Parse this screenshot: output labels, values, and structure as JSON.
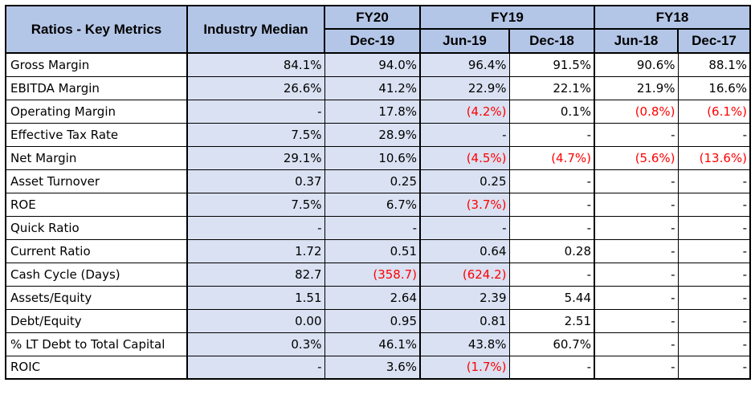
{
  "header": {
    "ratios_label": "Ratios - Key Metrics",
    "industry_median_label": "Industry Median",
    "fiscal_years": [
      "FY20",
      "FY19",
      "FY18"
    ],
    "periods": [
      "Dec-19",
      "Jun-19",
      "Dec-18",
      "Jun-18",
      "Dec-17"
    ]
  },
  "colors": {
    "header_fill": "#b4c6e7",
    "shaded_fill": "#d9e1f2",
    "negative_text": "#ff0000"
  },
  "rows": [
    {
      "label": "Gross Margin",
      "median": "84.1%",
      "values": [
        "94.0%",
        "96.4%",
        "91.5%",
        "90.6%",
        "88.1%"
      ],
      "negative": [
        false,
        false,
        false,
        false,
        false
      ]
    },
    {
      "label": "EBITDA Margin",
      "median": "26.6%",
      "values": [
        "41.2%",
        "22.9%",
        "22.1%",
        "21.9%",
        "16.6%"
      ],
      "negative": [
        false,
        false,
        false,
        false,
        false
      ]
    },
    {
      "label": "Operating Margin",
      "median": "-",
      "values": [
        "17.8%",
        "(4.2%)",
        "0.1%",
        "(0.8%)",
        "(6.1%)"
      ],
      "negative": [
        false,
        true,
        false,
        true,
        true
      ]
    },
    {
      "label": "Effective Tax Rate",
      "median": "7.5%",
      "values": [
        "28.9%",
        "-",
        "-",
        "-",
        "-"
      ],
      "negative": [
        false,
        false,
        false,
        false,
        false
      ]
    },
    {
      "label": "Net Margin",
      "median": "29.1%",
      "values": [
        "10.6%",
        "(4.5%)",
        "(4.7%)",
        "(5.6%)",
        "(13.6%)"
      ],
      "negative": [
        false,
        true,
        true,
        true,
        true
      ]
    },
    {
      "label": "Asset Turnover",
      "median": "0.37",
      "values": [
        "0.25",
        "0.25",
        "-",
        "-",
        "-"
      ],
      "negative": [
        false,
        false,
        false,
        false,
        false
      ]
    },
    {
      "label": "ROE",
      "median": "7.5%",
      "values": [
        "6.7%",
        "(3.7%)",
        "-",
        "-",
        "-"
      ],
      "negative": [
        false,
        true,
        false,
        false,
        false
      ]
    },
    {
      "label": "Quick Ratio",
      "median": "-",
      "values": [
        "-",
        "-",
        "-",
        "-",
        "-"
      ],
      "negative": [
        false,
        false,
        false,
        false,
        false
      ]
    },
    {
      "label": "Current Ratio",
      "median": "1.72",
      "values": [
        "0.51",
        "0.64",
        "0.28",
        "-",
        "-"
      ],
      "negative": [
        false,
        false,
        false,
        false,
        false
      ]
    },
    {
      "label": "Cash Cycle (Days)",
      "median": "82.7",
      "values": [
        "(358.7)",
        "(624.2)",
        "-",
        "-",
        "-"
      ],
      "negative": [
        true,
        true,
        false,
        false,
        false
      ]
    },
    {
      "label": "Assets/Equity",
      "median": "1.51",
      "values": [
        "2.64",
        "2.39",
        "5.44",
        "-",
        "-"
      ],
      "negative": [
        false,
        false,
        false,
        false,
        false
      ]
    },
    {
      "label": "Debt/Equity",
      "median": "0.00",
      "values": [
        "0.95",
        "0.81",
        "2.51",
        "-",
        "-"
      ],
      "negative": [
        false,
        false,
        false,
        false,
        false
      ]
    },
    {
      "label": "% LT Debt to Total Capital",
      "median": "0.3%",
      "values": [
        "46.1%",
        "43.8%",
        "60.7%",
        "-",
        "-"
      ],
      "negative": [
        false,
        false,
        false,
        false,
        false
      ]
    },
    {
      "label": "ROIC",
      "median": "-",
      "values": [
        "3.6%",
        "(1.7%)",
        "-",
        "-",
        "-"
      ],
      "negative": [
        false,
        true,
        false,
        false,
        false
      ]
    }
  ]
}
